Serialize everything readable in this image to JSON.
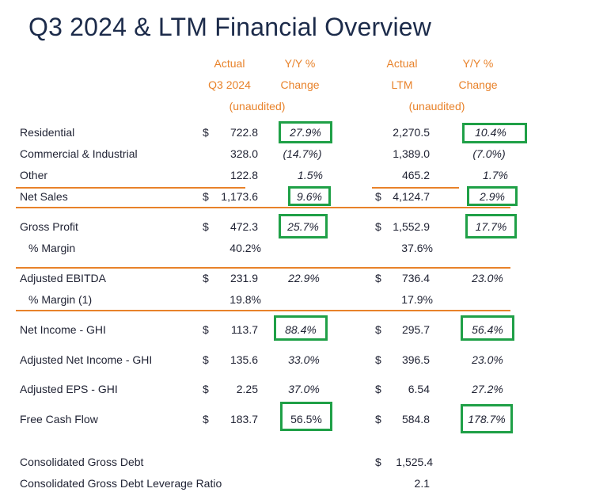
{
  "title": "Q3 2024 & LTM Financial Overview",
  "headers": {
    "q3_actual": [
      "Actual",
      "Q3 2024",
      "(unaudited)"
    ],
    "q3_yy": [
      "Y/Y %",
      "Change"
    ],
    "ltm_actual": [
      "Actual",
      "LTM",
      "(unaudited)"
    ],
    "ltm_yy": [
      "Y/Y %",
      "Change"
    ]
  },
  "rows": [
    {
      "label": "Residential",
      "q3_dollar": "$",
      "q3": "722.8",
      "q3_yy": "27.9%",
      "ltm_dollar": "",
      "ltm": "2,270.5",
      "ltm_yy": "10.4%"
    },
    {
      "label": "Commercial & Industrial",
      "q3_dollar": "",
      "q3": "328.0",
      "q3_yy": "(14.7%)",
      "ltm_dollar": "",
      "ltm": "1,389.0",
      "ltm_yy": "(7.0%)"
    },
    {
      "label": "Other",
      "q3_dollar": "",
      "q3": "122.8",
      "q3_yy": "1.5%",
      "ltm_dollar": "",
      "ltm": "465.2",
      "ltm_yy": "1.7%"
    },
    {
      "label": "Net Sales",
      "q3_dollar": "$",
      "q3": "1,173.6",
      "q3_yy": "9.6%",
      "ltm_dollar": "$",
      "ltm": "4,124.7",
      "ltm_yy": "2.9%"
    },
    {
      "label": "Gross Profit",
      "q3_dollar": "$",
      "q3": "472.3",
      "q3_yy": "25.7%",
      "ltm_dollar": "$",
      "ltm": "1,552.9",
      "ltm_yy": "17.7%"
    },
    {
      "label": "% Margin",
      "q3_dollar": "",
      "q3": "40.2%",
      "q3_yy": "",
      "ltm_dollar": "",
      "ltm": "37.6%",
      "ltm_yy": ""
    },
    {
      "label": "Adjusted EBITDA",
      "q3_dollar": "$",
      "q3": "231.9",
      "q3_yy": "22.9%",
      "ltm_dollar": "$",
      "ltm": "736.4",
      "ltm_yy": "23.0%"
    },
    {
      "label": "% Margin (1)",
      "q3_dollar": "",
      "q3": "19.8%",
      "q3_yy": "",
      "ltm_dollar": "",
      "ltm": "17.9%",
      "ltm_yy": ""
    },
    {
      "label": "Net Income - GHI",
      "q3_dollar": "$",
      "q3": "113.7",
      "q3_yy": "88.4%",
      "ltm_dollar": "$",
      "ltm": "295.7",
      "ltm_yy": "56.4%"
    },
    {
      "label": "Adjusted Net Income - GHI",
      "q3_dollar": "$",
      "q3": "135.6",
      "q3_yy": "33.0%",
      "ltm_dollar": "$",
      "ltm": "396.5",
      "ltm_yy": "23.0%"
    },
    {
      "label": "Adjusted EPS - GHI",
      "q3_dollar": "$",
      "q3": "2.25",
      "q3_yy": "37.0%",
      "ltm_dollar": "$",
      "ltm": "6.54",
      "ltm_yy": "27.2%"
    },
    {
      "label": "Free Cash Flow",
      "q3_dollar": "$",
      "q3": "183.7",
      "q3_yy": "56.5%",
      "ltm_dollar": "$",
      "ltm": "584.8",
      "ltm_yy": "178.7%"
    },
    {
      "label": "Consolidated Gross Debt",
      "q3_dollar": "",
      "q3": "",
      "q3_yy": "",
      "ltm_dollar": "$",
      "ltm": "1,525.4",
      "ltm_yy": ""
    },
    {
      "label": "Consolidated Gross Debt Leverage Ratio",
      "q3_dollar": "",
      "q3": "",
      "q3_yy": "",
      "ltm_dollar": "",
      "ltm": "2.1",
      "ltm_yy": ""
    }
  ],
  "highlight_color": "#1fa047",
  "rule_color": "#e8822a"
}
